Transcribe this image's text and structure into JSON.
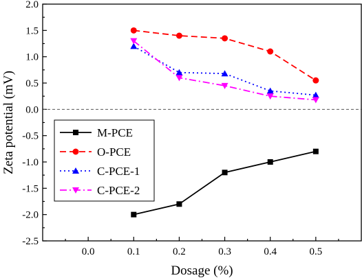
{
  "chart_data": {
    "type": "line",
    "title": "",
    "xlabel": "Dosage (%)",
    "ylabel": "Zeta potential (mV)",
    "xlim": [
      -0.1,
      0.6
    ],
    "ylim": [
      -2.5,
      2.0
    ],
    "xticks": [
      "0.0",
      "0.1",
      "0.2",
      "0.3",
      "0.4",
      "0.5"
    ],
    "yticks": [
      "-2.5",
      "-2.0",
      "-1.5",
      "-1.0",
      "-0.5",
      "0.0",
      "0.5",
      "1.0",
      "1.5",
      "2.0"
    ],
    "reference_line": {
      "y": 0,
      "style": "dashed",
      "color": "#555555"
    },
    "grid": false,
    "legend_position": "bottom-left",
    "x": [
      0.1,
      0.2,
      0.3,
      0.4,
      0.5
    ],
    "series": [
      {
        "name": "M-PCE",
        "values": [
          -2.0,
          -1.8,
          -1.2,
          -1.0,
          -0.8
        ],
        "color": "#000000",
        "line": "solid",
        "marker": "square"
      },
      {
        "name": "O-PCE",
        "values": [
          1.5,
          1.4,
          1.35,
          1.1,
          0.55
        ],
        "color": "#ff0000",
        "line": "dashed",
        "marker": "circle"
      },
      {
        "name": "C-PCE-1",
        "values": [
          1.2,
          0.7,
          0.68,
          0.35,
          0.27
        ],
        "color": "#0000ff",
        "line": "dotted",
        "marker": "triangle-up"
      },
      {
        "name": "C-PCE-2",
        "values": [
          1.3,
          0.6,
          0.45,
          0.25,
          0.18
        ],
        "color": "#ff00ff",
        "line": "dashdot",
        "marker": "triangle-down"
      }
    ]
  }
}
